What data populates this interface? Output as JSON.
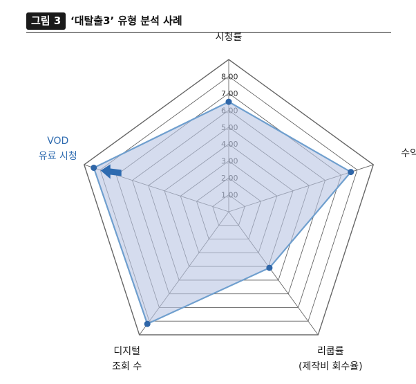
{
  "header": {
    "figure_label": "그림 3",
    "title": "‘대탈출3’ 유형 분석 사례"
  },
  "chart_data": {
    "type": "radar",
    "axes": [
      {
        "label_lines": [
          "시청률"
        ]
      },
      {
        "label_lines": [
          "수익"
        ]
      },
      {
        "label_lines": [
          "리쿱률",
          "(제작비 회수율)"
        ]
      },
      {
        "label_lines": [
          "디지털",
          "조회 수"
        ]
      },
      {
        "label_lines": [
          "VOD",
          "유료 시청"
        ],
        "highlight": true
      }
    ],
    "series": [
      {
        "values": [
          6.5,
          7.6,
          4.1,
          8.2,
          8.4
        ]
      }
    ],
    "ticks": [
      "1.00",
      "2.00",
      "3.00",
      "4.00",
      "5.00",
      "6.00",
      "7.00",
      "8.00"
    ],
    "rlim": [
      0,
      9
    ],
    "grid_levels": 9,
    "colors": {
      "fill": "#b9c4e3",
      "line": "#6f9fce",
      "point": "#2f66a8",
      "grid": "#666666",
      "highlight": "#2e6bb0"
    },
    "annotations": [
      {
        "type": "arrow",
        "target_axis": "VOD 유료 시청"
      }
    ]
  }
}
